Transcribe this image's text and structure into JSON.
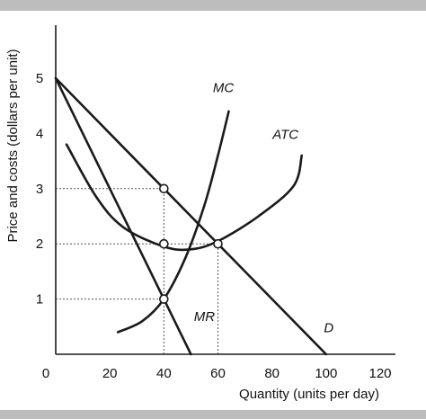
{
  "chart_data": {
    "type": "line",
    "xlabel": "Quantity (units per day)",
    "ylabel": "Price and costs (dollars per unit)",
    "xlim": [
      0,
      120
    ],
    "ylim": [
      0,
      5.5
    ],
    "x_ticks": [
      "0",
      "20",
      "40",
      "60",
      "80",
      "100",
      "120"
    ],
    "y_ticks": [
      "1",
      "2",
      "3",
      "4",
      "5"
    ],
    "grid": false,
    "series": [
      {
        "name": "D",
        "points": [
          [
            0,
            5
          ],
          [
            100,
            0
          ]
        ],
        "smooth": false
      },
      {
        "name": "MR",
        "points": [
          [
            0,
            5
          ],
          [
            50,
            0
          ]
        ],
        "smooth": false
      },
      {
        "name": "MC",
        "points": [
          [
            23,
            0.4
          ],
          [
            32,
            0.6
          ],
          [
            40,
            1
          ],
          [
            48,
            1.75
          ],
          [
            55,
            2.7
          ],
          [
            60,
            3.6
          ],
          [
            64,
            4.4
          ]
        ],
        "smooth": true
      },
      {
        "name": "ATC",
        "points": [
          [
            4,
            3.8
          ],
          [
            15,
            2.85
          ],
          [
            25,
            2.3
          ],
          [
            40,
            1.95
          ],
          [
            50,
            1.9
          ],
          [
            60,
            2.05
          ],
          [
            75,
            2.5
          ],
          [
            88,
            3.05
          ],
          [
            91,
            3.6
          ]
        ],
        "smooth": true
      }
    ],
    "label_positions": {
      "MC": [
        62,
        4.75
      ],
      "ATC": [
        85,
        3.9
      ],
      "MR": [
        55,
        0.6
      ],
      "D": [
        101,
        0.4
      ]
    },
    "points_marked": [
      [
        40,
        3
      ],
      [
        40,
        2
      ],
      [
        40,
        1
      ],
      [
        60,
        2
      ]
    ],
    "dashed_guides": [
      {
        "from": [
          0,
          3
        ],
        "to": [
          40,
          3
        ]
      },
      {
        "from": [
          0,
          2
        ],
        "to": [
          60,
          2
        ]
      },
      {
        "from": [
          0,
          1
        ],
        "to": [
          40,
          1
        ]
      },
      {
        "from": [
          40,
          0
        ],
        "to": [
          40,
          3
        ]
      },
      {
        "from": [
          60,
          0
        ],
        "to": [
          60,
          2
        ]
      }
    ],
    "colors": {
      "line": "#1a1a1a",
      "guide": "#555555",
      "band": "#bdbdbd"
    }
  }
}
